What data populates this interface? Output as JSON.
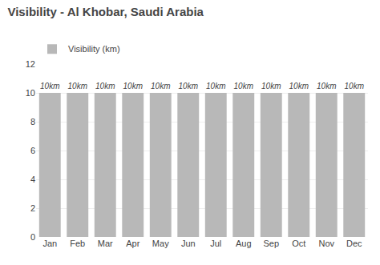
{
  "chart_data": {
    "type": "bar",
    "title": "Visibility - Al Khobar, Saudi Arabia",
    "categories": [
      "Jan",
      "Feb",
      "Mar",
      "Apr",
      "May",
      "Jun",
      "Jul",
      "Aug",
      "Sep",
      "Oct",
      "Nov",
      "Dec"
    ],
    "series": [
      {
        "name": "Visibility (km)",
        "color": "#b8b8b8",
        "values": [
          10,
          10,
          10,
          10,
          10,
          10,
          10,
          10,
          10,
          10,
          10,
          10
        ],
        "value_labels": [
          "10km",
          "10km",
          "10km",
          "10km",
          "10km",
          "10km",
          "10km",
          "10km",
          "10km",
          "10km",
          "10km",
          "10km"
        ]
      }
    ],
    "ylim": [
      0,
      12
    ],
    "yticks": [
      0,
      2,
      4,
      6,
      8,
      10,
      12
    ],
    "grid": true,
    "legend": "upper left",
    "data_labels": true
  }
}
